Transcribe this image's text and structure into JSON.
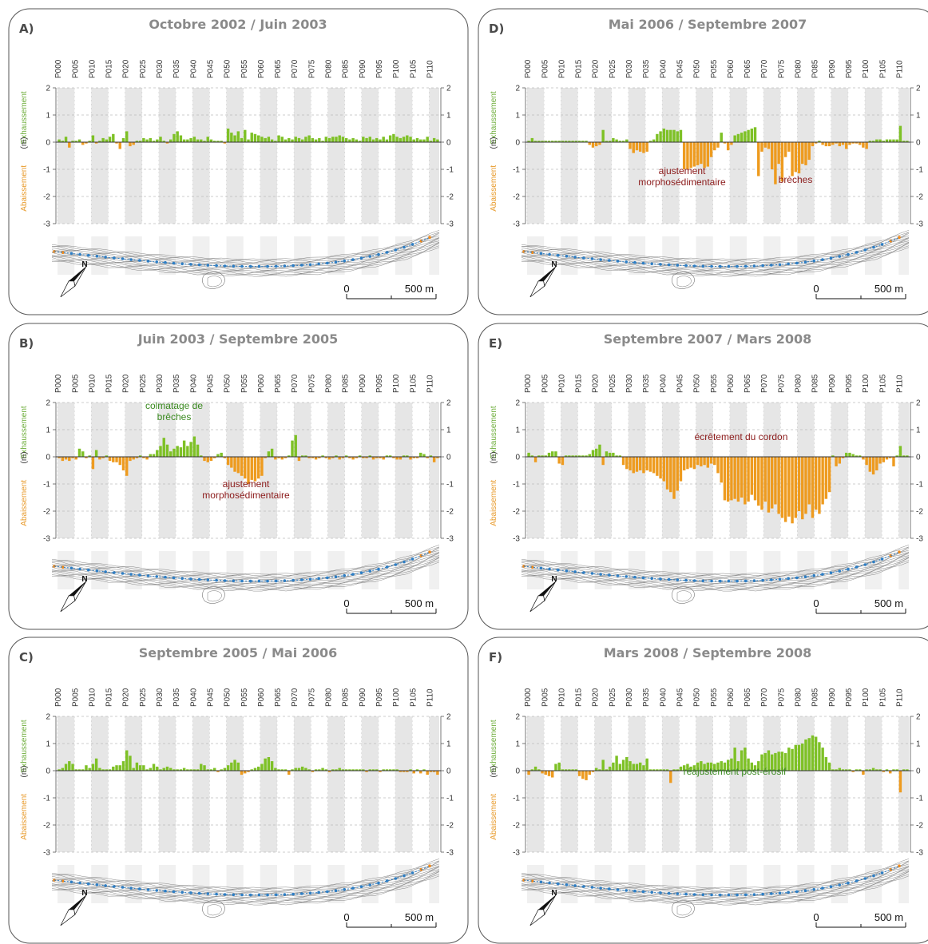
{
  "colors": {
    "exhaussement": "#7ec126",
    "abaissement": "#ee9b1f",
    "panel_border": "#555555",
    "band": "#e6e6e6",
    "title": "#8a8a8a",
    "annot_red": "#8b1a1a",
    "annot_green": "#3a8a1f",
    "profile_dots": "#2e7ec4",
    "profile_ends": "#f08a1c"
  },
  "icons": [
    "north-arrow-icon"
  ],
  "common": {
    "profile_labels": [
      "P000",
      "P005",
      "P010",
      "P015",
      "P020",
      "P025",
      "P030",
      "P035",
      "P040",
      "P045",
      "P050",
      "P055",
      "P060",
      "P065",
      "P070",
      "P075",
      "P080",
      "P085",
      "P090",
      "P095",
      "P100",
      "P105",
      "P110"
    ],
    "y_ticks": [
      "2",
      "1",
      "0",
      "-1",
      "-2",
      "-3"
    ],
    "y_label_up": "Exhaussement",
    "y_label_unit": "(m)",
    "y_label_down": "Abaissement",
    "north": "N",
    "scale_start": "0",
    "scale_end": "500 m"
  },
  "chart_data": [
    {
      "type": "bar",
      "panel": "A)",
      "title": "Octobre 2002 / Juin 2003",
      "ylim": [
        -3,
        2
      ],
      "x": "profile index P000–P110 (step 1)",
      "values": [
        0.1,
        0.05,
        0.2,
        -0.2,
        0.05,
        0.05,
        0.1,
        -0.1,
        -0.05,
        0.05,
        0.25,
        -0.05,
        0.05,
        0.15,
        0.1,
        0.2,
        0.3,
        -0.05,
        -0.25,
        0.15,
        0.4,
        -0.15,
        -0.1,
        0.05,
        0.05,
        0.15,
        0.1,
        0.15,
        0.05,
        0.1,
        0.2,
        0.05,
        -0.05,
        0.1,
        0.3,
        0.4,
        0.25,
        0.1,
        0.1,
        0.15,
        0.2,
        0.1,
        0.1,
        0.05,
        0.2,
        0.1,
        0.05,
        0.05,
        0.05,
        -0.05,
        0.5,
        0.35,
        0.25,
        0.4,
        0.15,
        0.45,
        0.1,
        0.35,
        0.3,
        0.25,
        0.2,
        0.15,
        0.2,
        0.1,
        0.05,
        0.25,
        0.2,
        0.1,
        0.15,
        0.1,
        0.2,
        0.15,
        0.1,
        0.2,
        0.25,
        0.15,
        0.1,
        0.15,
        0.05,
        0.2,
        0.15,
        0.2,
        0.2,
        0.25,
        0.2,
        0.15,
        0.1,
        0.15,
        0.1,
        0.05,
        0.2,
        0.15,
        0.2,
        0.1,
        0.15,
        0.1,
        0.2,
        0.1,
        0.25,
        0.3,
        0.2,
        0.15,
        0.2,
        0.25,
        0.2,
        0.1,
        0.15,
        0.1,
        0.1,
        0.2,
        0.05,
        0.15,
        0.1
      ],
      "annotations": []
    },
    {
      "type": "bar",
      "panel": "B)",
      "title": "Juin 2003 / Septembre 2005",
      "ylim": [
        -3,
        2
      ],
      "x": "profile index P000–P110 (step 1)",
      "values": [
        -0.05,
        -0.15,
        -0.1,
        -0.15,
        -0.05,
        -0.1,
        0.3,
        0.2,
        -0.05,
        0.05,
        -0.45,
        0.25,
        -0.1,
        -0.05,
        0.05,
        -0.15,
        -0.2,
        -0.2,
        -0.3,
        -0.5,
        -0.7,
        -0.15,
        -0.1,
        -0.05,
        0.05,
        -0.05,
        -0.1,
        0.1,
        0.1,
        0.25,
        0.4,
        0.7,
        0.45,
        0.2,
        0.3,
        0.4,
        0.35,
        0.6,
        0.4,
        0.55,
        0.75,
        0.45,
        0.05,
        -0.15,
        -0.2,
        -0.15,
        -0.05,
        0.1,
        0.15,
        -0.05,
        -0.3,
        -0.4,
        -0.55,
        -0.6,
        -0.7,
        -0.8,
        -1.0,
        -0.85,
        -0.9,
        -0.8,
        -0.7,
        -0.05,
        0.2,
        0.3,
        -0.1,
        -0.05,
        -0.1,
        -0.05,
        0.05,
        0.6,
        0.8,
        -0.15,
        0.05,
        0.05,
        -0.05,
        -0.05,
        -0.1,
        -0.05,
        0.05,
        -0.05,
        -0.1,
        -0.05,
        0.05,
        -0.1,
        -0.05,
        0.05,
        -0.05,
        -0.1,
        -0.05,
        0.05,
        -0.05,
        -0.05,
        0.05,
        -0.1,
        -0.05,
        -0.05,
        -0.1,
        0.05,
        0.05,
        -0.05,
        -0.1,
        -0.1,
        0.05,
        0.05,
        -0.1,
        -0.05,
        -0.05,
        0.15,
        0.1,
        -0.05,
        0.05,
        -0.2,
        -0.05
      ],
      "annotations": [
        {
          "text": "colmatage de",
          "color": "green"
        },
        {
          "text": "brêches",
          "color": "green"
        },
        {
          "text": "ajustement",
          "color": "red"
        },
        {
          "text": "morphosédimentaire",
          "color": "red"
        }
      ]
    },
    {
      "type": "bar",
      "panel": "C)",
      "title": "Septembre 2005 / Mai 2006",
      "ylim": [
        -3,
        2
      ],
      "x": "profile index P000–P110 (step 1)",
      "values": [
        0.05,
        0.1,
        0.25,
        0.35,
        0.25,
        0.05,
        0.05,
        0.05,
        0.2,
        0.1,
        0.25,
        0.45,
        0.1,
        0.05,
        0.05,
        0.05,
        0.15,
        0.2,
        0.2,
        0.35,
        0.75,
        0.55,
        0.1,
        0.3,
        0.2,
        0.2,
        0.05,
        0.1,
        0.25,
        0.15,
        0.05,
        0.1,
        0.15,
        0.1,
        0.05,
        0.05,
        0.05,
        0.1,
        0.05,
        0.05,
        0.05,
        0.05,
        0.25,
        0.2,
        0.05,
        0.05,
        0.1,
        -0.05,
        0.05,
        0.1,
        0.2,
        0.3,
        0.4,
        0.3,
        -0.15,
        -0.1,
        -0.05,
        0.05,
        0.1,
        0.15,
        0.25,
        0.45,
        0.5,
        0.35,
        0.1,
        0.05,
        0.05,
        0.05,
        -0.15,
        0.05,
        0.1,
        0.1,
        0.15,
        0.1,
        0.05,
        -0.05,
        0.05,
        0.05,
        0.1,
        0.05,
        -0.05,
        0.05,
        0.05,
        0.1,
        0.05,
        0.05,
        0.05,
        0.05,
        0.05,
        0.05,
        0.05,
        -0.05,
        0.05,
        0.05,
        0.05,
        -0.05,
        0.05,
        0.05,
        0.05,
        0.05,
        0.05,
        -0.05,
        -0.05,
        -0.05,
        0.05,
        -0.1,
        0.05,
        -0.1,
        0.05,
        -0.15,
        -0.05,
        -0.05,
        -0.15
      ],
      "annotations": []
    },
    {
      "type": "bar",
      "panel": "D)",
      "title": "Mai 2006 / Septembre 2007",
      "ylim": [
        -3,
        2
      ],
      "x": "profile index P000–P110 (step 1)",
      "values": [
        0.05,
        0.15,
        0.05,
        0.05,
        0.05,
        0.05,
        0.05,
        0.05,
        0.05,
        0.05,
        0.05,
        0.05,
        0.05,
        0.05,
        0.05,
        0.05,
        0.05,
        0.05,
        -0.1,
        -0.2,
        -0.15,
        -0.1,
        0.45,
        0.05,
        0.05,
        0.15,
        0.1,
        0.05,
        0.05,
        0.1,
        -0.25,
        -0.4,
        -0.3,
        -0.35,
        -0.4,
        -0.35,
        0.05,
        0.1,
        0.3,
        0.4,
        0.5,
        0.45,
        0.45,
        0.45,
        0.4,
        0.45,
        -1.0,
        -1.0,
        -0.95,
        -0.9,
        -0.85,
        -0.8,
        -0.95,
        -0.9,
        -0.55,
        -0.3,
        -0.2,
        0.35,
        -0.05,
        -0.3,
        -0.1,
        0.25,
        0.3,
        0.35,
        0.4,
        0.45,
        0.5,
        0.55,
        -1.25,
        -0.35,
        -0.2,
        -0.25,
        -1.0,
        -1.55,
        -0.8,
        -1.45,
        -0.55,
        -0.35,
        -1.25,
        -1.1,
        -1.15,
        -0.8,
        -0.85,
        -0.65,
        -0.15,
        -0.05,
        0.05,
        -0.1,
        -0.15,
        -0.15,
        -0.1,
        -0.05,
        -0.15,
        -0.1,
        -0.25,
        -0.1,
        -0.05,
        -0.05,
        -0.1,
        -0.2,
        -0.25,
        0.05,
        0.05,
        0.1,
        0.1,
        0.05,
        0.1,
        0.1,
        0.1,
        0.1,
        0.6,
        0.05,
        0.05
      ],
      "annotations": [
        {
          "text": "ajustement",
          "color": "red"
        },
        {
          "text": "morphosédimentaire",
          "color": "red"
        },
        {
          "text": "brèches",
          "color": "red"
        }
      ]
    },
    {
      "type": "bar",
      "panel": "E)",
      "title": "Septembre 2007 / Mars 2008",
      "ylim": [
        -3,
        2
      ],
      "x": "profile index P000–P110 (step 1)",
      "values": [
        0.15,
        0.05,
        -0.2,
        0.05,
        0.05,
        0.05,
        0.15,
        0.2,
        0.2,
        -0.25,
        -0.3,
        0.05,
        0.05,
        0.05,
        0.05,
        0.05,
        0.05,
        0.05,
        0.1,
        0.25,
        0.3,
        0.45,
        -0.3,
        0.2,
        0.15,
        0.15,
        0.05,
        0.05,
        -0.3,
        -0.45,
        -0.5,
        -0.6,
        -0.55,
        -0.5,
        -0.6,
        -0.5,
        -0.55,
        -0.6,
        -0.7,
        -0.8,
        -0.9,
        -1.2,
        -1.3,
        -1.55,
        -1.25,
        -0.9,
        -0.5,
        -0.45,
        -0.4,
        -0.45,
        -0.3,
        -0.35,
        -0.3,
        -0.4,
        -0.25,
        -0.3,
        -0.6,
        -0.95,
        -1.6,
        -1.65,
        -1.6,
        -1.55,
        -1.65,
        -1.5,
        -1.75,
        -1.65,
        -1.4,
        -1.6,
        -1.8,
        -1.95,
        -1.65,
        -2.05,
        -1.9,
        -1.75,
        -2.1,
        -2.25,
        -2.4,
        -2.2,
        -2.45,
        -2.25,
        -2.0,
        -2.3,
        -2.1,
        -1.75,
        -2.25,
        -1.95,
        -2.1,
        -1.75,
        -1.55,
        -1.3,
        0.05,
        -0.35,
        -0.25,
        -0.05,
        0.15,
        0.15,
        0.1,
        0.05,
        0.05,
        -0.1,
        -0.3,
        -0.55,
        -0.65,
        -0.5,
        -0.25,
        -0.2,
        -0.1,
        -0.05,
        -0.35,
        0.05,
        0.4,
        0.05,
        0.05
      ],
      "annotations": [
        {
          "text": "écrêtement du cordon",
          "color": "red"
        }
      ]
    },
    {
      "type": "bar",
      "panel": "F)",
      "title": "Mars 2008 / Septembre 2008",
      "ylim": [
        -3,
        2
      ],
      "x": "profile index P000–P110 (step 1)",
      "values": [
        -0.15,
        0.05,
        0.15,
        0.05,
        -0.1,
        -0.15,
        -0.2,
        -0.25,
        0.25,
        0.3,
        0.05,
        0.05,
        0.05,
        0.05,
        0.05,
        -0.2,
        -0.3,
        -0.35,
        -0.15,
        -0.05,
        0.1,
        0.05,
        0.4,
        0.05,
        0.15,
        0.3,
        0.55,
        0.25,
        0.4,
        0.5,
        0.35,
        0.25,
        0.25,
        0.3,
        0.2,
        0.45,
        0.05,
        0.05,
        0.05,
        0.05,
        0.05,
        0.05,
        -0.45,
        0.05,
        0.05,
        0.15,
        0.2,
        0.25,
        0.15,
        0.2,
        0.3,
        0.35,
        0.25,
        0.3,
        0.3,
        0.25,
        0.3,
        0.35,
        0.3,
        0.4,
        0.45,
        0.85,
        0.35,
        0.75,
        0.85,
        0.45,
        0.3,
        0.2,
        0.35,
        0.6,
        0.65,
        0.75,
        0.6,
        0.65,
        0.7,
        0.7,
        0.65,
        0.85,
        0.8,
        0.95,
        0.95,
        1.0,
        1.15,
        1.2,
        1.3,
        1.25,
        1.05,
        0.85,
        0.5,
        0.3,
        0.05,
        0.05,
        0.1,
        0.05,
        0.05,
        0.05,
        -0.05,
        0.05,
        0.05,
        -0.15,
        0.05,
        0.05,
        0.1,
        0.05,
        0.05,
        -0.05,
        0.05,
        -0.1,
        0.05,
        0.05,
        -0.8,
        0.05,
        0.05
      ],
      "annotations": [
        {
          "text": "réajustement post-érosif",
          "color": "green"
        }
      ]
    }
  ]
}
